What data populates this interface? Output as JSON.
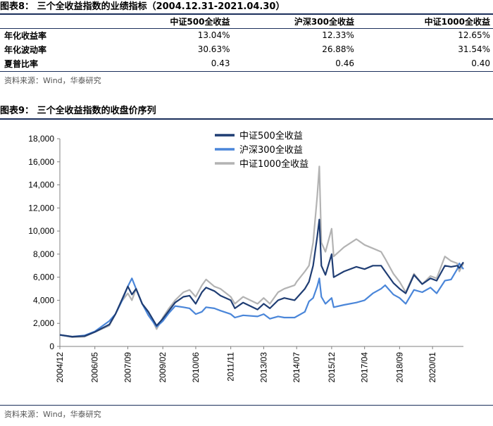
{
  "table_figure": {
    "title": "图表8：  三个全收益指数的业绩指标（2004.12.31-2021.04.30）",
    "columns": [
      "中证500全收益",
      "沪深300全收益",
      "中证1000全收益"
    ],
    "rows": [
      {
        "label": "年化收益率",
        "values": [
          "13.04%",
          "12.33%",
          "12.65%"
        ]
      },
      {
        "label": "年化波动率",
        "values": [
          "30.63%",
          "26.88%",
          "31.54%"
        ]
      },
      {
        "label": "夏普比率",
        "values": [
          "0.43",
          "0.46",
          "0.40"
        ]
      }
    ],
    "source": "资料来源：Wind，华泰研究"
  },
  "chart_figure": {
    "title": "图表9：  三个全收益指数的收盘价序列",
    "source": "资料来源：Wind，华泰研究"
  },
  "colors": {
    "csi500": "#1f3d73",
    "hs300": "#4a86d9",
    "csi1000": "#b3b3b3",
    "rule": "#1b2f5b"
  },
  "chart_data": {
    "type": "line",
    "title": "",
    "xlabel": "",
    "ylabel": "",
    "ylim": [
      0,
      18000
    ],
    "yticks": [
      0,
      2000,
      4000,
      6000,
      8000,
      10000,
      12000,
      14000,
      16000,
      18000
    ],
    "ytick_labels": [
      "0",
      "2,000",
      "4,000",
      "6,000",
      "8,000",
      "10,000",
      "12,000",
      "14,000",
      "16,000",
      "18,000"
    ],
    "xlim": [
      "2004-12",
      "2021-04"
    ],
    "xticks": [
      "2004-12",
      "2006-05",
      "2007-09",
      "2009-02",
      "2010-06",
      "2011-11",
      "2013-03",
      "2014-07",
      "2015-12",
      "2017-04",
      "2018-09",
      "2020-01"
    ],
    "xtick_labels": [
      "2004/12",
      "2006/05",
      "2007/09",
      "2009/02",
      "2010/06",
      "2011/11",
      "2013/03",
      "2014/07",
      "2015/12",
      "2017/04",
      "2018/09",
      "2020/01"
    ],
    "grid": false,
    "legend": "top-center",
    "series": [
      {
        "name": "中证500全收益",
        "color": "#1f3d73",
        "points": [
          [
            "2004-12",
            1000
          ],
          [
            "2005-06",
            850
          ],
          [
            "2005-12",
            900
          ],
          [
            "2006-05",
            1250
          ],
          [
            "2006-12",
            1900
          ],
          [
            "2007-03",
            2800
          ],
          [
            "2007-06",
            4000
          ],
          [
            "2007-09",
            5200
          ],
          [
            "2007-11",
            4500
          ],
          [
            "2008-01",
            5000
          ],
          [
            "2008-04",
            3700
          ],
          [
            "2008-07",
            3000
          ],
          [
            "2008-11",
            1800
          ],
          [
            "2009-02",
            2400
          ],
          [
            "2009-05",
            3100
          ],
          [
            "2009-08",
            3800
          ],
          [
            "2009-12",
            4300
          ],
          [
            "2010-03",
            4400
          ],
          [
            "2010-06",
            3700
          ],
          [
            "2010-09",
            4700
          ],
          [
            "2010-11",
            5100
          ],
          [
            "2011-03",
            4800
          ],
          [
            "2011-06",
            4400
          ],
          [
            "2011-11",
            4000
          ],
          [
            "2012-01",
            3300
          ],
          [
            "2012-05",
            3800
          ],
          [
            "2012-12",
            3200
          ],
          [
            "2013-03",
            3700
          ],
          [
            "2013-06",
            3300
          ],
          [
            "2013-10",
            4000
          ],
          [
            "2014-01",
            4200
          ],
          [
            "2014-06",
            4000
          ],
          [
            "2014-07",
            4200
          ],
          [
            "2014-11",
            5000
          ],
          [
            "2015-01",
            5600
          ],
          [
            "2015-03",
            7000
          ],
          [
            "2015-05",
            9500
          ],
          [
            "2015-06",
            11000
          ],
          [
            "2015-07",
            7000
          ],
          [
            "2015-09",
            6200
          ],
          [
            "2015-12",
            8000
          ],
          [
            "2016-01",
            6000
          ],
          [
            "2016-06",
            6500
          ],
          [
            "2016-12",
            6900
          ],
          [
            "2017-04",
            6700
          ],
          [
            "2017-08",
            7000
          ],
          [
            "2017-12",
            7000
          ],
          [
            "2018-02",
            6500
          ],
          [
            "2018-06",
            5500
          ],
          [
            "2018-09",
            5000
          ],
          [
            "2018-12",
            4600
          ],
          [
            "2019-04",
            6200
          ],
          [
            "2019-08",
            5400
          ],
          [
            "2019-12",
            5900
          ],
          [
            "2020-03",
            5700
          ],
          [
            "2020-07",
            7000
          ],
          [
            "2020-10",
            6900
          ],
          [
            "2021-01",
            7000
          ],
          [
            "2021-02",
            6800
          ],
          [
            "2021-04",
            7300
          ]
        ]
      },
      {
        "name": "沪深300全收益",
        "color": "#4a86d9",
        "points": [
          [
            "2004-12",
            1000
          ],
          [
            "2005-06",
            850
          ],
          [
            "2005-12",
            950
          ],
          [
            "2006-05",
            1300
          ],
          [
            "2006-12",
            2200
          ],
          [
            "2007-03",
            2800
          ],
          [
            "2007-06",
            3900
          ],
          [
            "2007-09",
            5200
          ],
          [
            "2007-11",
            5900
          ],
          [
            "2008-01",
            5000
          ],
          [
            "2008-04",
            3700
          ],
          [
            "2008-07",
            2700
          ],
          [
            "2008-11",
            1700
          ],
          [
            "2009-02",
            2200
          ],
          [
            "2009-05",
            2900
          ],
          [
            "2009-08",
            3500
          ],
          [
            "2009-12",
            3400
          ],
          [
            "2010-03",
            3300
          ],
          [
            "2010-06",
            2800
          ],
          [
            "2010-09",
            3000
          ],
          [
            "2010-11",
            3400
          ],
          [
            "2011-03",
            3300
          ],
          [
            "2011-06",
            3100
          ],
          [
            "2011-11",
            2800
          ],
          [
            "2012-01",
            2500
          ],
          [
            "2012-05",
            2700
          ],
          [
            "2012-12",
            2600
          ],
          [
            "2013-03",
            2800
          ],
          [
            "2013-06",
            2400
          ],
          [
            "2013-10",
            2600
          ],
          [
            "2014-01",
            2500
          ],
          [
            "2014-06",
            2500
          ],
          [
            "2014-07",
            2600
          ],
          [
            "2014-11",
            3000
          ],
          [
            "2015-01",
            3900
          ],
          [
            "2015-03",
            4200
          ],
          [
            "2015-05",
            5200
          ],
          [
            "2015-06",
            5900
          ],
          [
            "2015-07",
            4300
          ],
          [
            "2015-09",
            3700
          ],
          [
            "2015-12",
            4200
          ],
          [
            "2016-01",
            3400
          ],
          [
            "2016-06",
            3600
          ],
          [
            "2016-12",
            3800
          ],
          [
            "2017-04",
            4000
          ],
          [
            "2017-08",
            4600
          ],
          [
            "2017-12",
            5000
          ],
          [
            "2018-02",
            5300
          ],
          [
            "2018-06",
            4500
          ],
          [
            "2018-09",
            4200
          ],
          [
            "2018-12",
            3700
          ],
          [
            "2019-04",
            4900
          ],
          [
            "2019-08",
            4700
          ],
          [
            "2019-12",
            5100
          ],
          [
            "2020-03",
            4600
          ],
          [
            "2020-07",
            5700
          ],
          [
            "2020-10",
            5800
          ],
          [
            "2021-01",
            6700
          ],
          [
            "2021-02",
            7200
          ],
          [
            "2021-04",
            6700
          ]
        ]
      },
      {
        "name": "中证1000全收益",
        "color": "#b3b3b3",
        "points": [
          [
            "2004-12",
            1000
          ],
          [
            "2005-06",
            800
          ],
          [
            "2005-12",
            850
          ],
          [
            "2006-05",
            1250
          ],
          [
            "2006-12",
            1800
          ],
          [
            "2007-03",
            2800
          ],
          [
            "2007-06",
            3900
          ],
          [
            "2007-09",
            4600
          ],
          [
            "2007-11",
            4000
          ],
          [
            "2008-01",
            5000
          ],
          [
            "2008-04",
            3700
          ],
          [
            "2008-07",
            3000
          ],
          [
            "2008-11",
            1500
          ],
          [
            "2009-02",
            2500
          ],
          [
            "2009-05",
            3300
          ],
          [
            "2009-08",
            4000
          ],
          [
            "2009-12",
            4700
          ],
          [
            "2010-03",
            4900
          ],
          [
            "2010-06",
            4300
          ],
          [
            "2010-09",
            5300
          ],
          [
            "2010-11",
            5800
          ],
          [
            "2011-03",
            5200
          ],
          [
            "2011-06",
            5000
          ],
          [
            "2011-11",
            4300
          ],
          [
            "2012-01",
            3700
          ],
          [
            "2012-05",
            4300
          ],
          [
            "2012-12",
            3700
          ],
          [
            "2013-03",
            4200
          ],
          [
            "2013-06",
            3700
          ],
          [
            "2013-10",
            4700
          ],
          [
            "2014-01",
            5000
          ],
          [
            "2014-06",
            5300
          ],
          [
            "2014-07",
            5600
          ],
          [
            "2014-11",
            6500
          ],
          [
            "2015-01",
            7000
          ],
          [
            "2015-03",
            9000
          ],
          [
            "2015-05",
            13000
          ],
          [
            "2015-06",
            15600
          ],
          [
            "2015-07",
            9000
          ],
          [
            "2015-09",
            8200
          ],
          [
            "2015-12",
            10200
          ],
          [
            "2016-01",
            7800
          ],
          [
            "2016-06",
            8600
          ],
          [
            "2016-12",
            9300
          ],
          [
            "2017-04",
            8800
          ],
          [
            "2017-08",
            8500
          ],
          [
            "2017-12",
            8200
          ],
          [
            "2018-02",
            7600
          ],
          [
            "2018-06",
            6300
          ],
          [
            "2018-09",
            5600
          ],
          [
            "2018-12",
            4700
          ],
          [
            "2019-04",
            6300
          ],
          [
            "2019-08",
            5400
          ],
          [
            "2019-12",
            6100
          ],
          [
            "2020-03",
            5900
          ],
          [
            "2020-07",
            7800
          ],
          [
            "2020-10",
            7400
          ],
          [
            "2021-01",
            7200
          ],
          [
            "2021-02",
            6500
          ],
          [
            "2021-04",
            7200
          ]
        ]
      }
    ]
  }
}
